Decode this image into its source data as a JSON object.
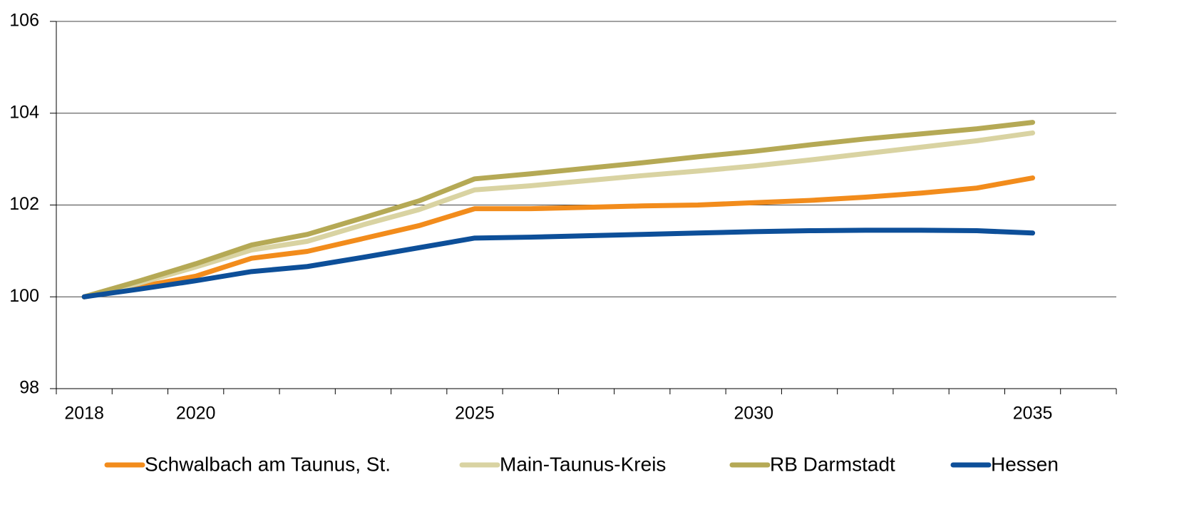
{
  "chart_data": {
    "type": "line",
    "categories": [
      "2018",
      null,
      "2020",
      null,
      null,
      null,
      null,
      "2025",
      null,
      null,
      null,
      null,
      "2030",
      null,
      null,
      null,
      null,
      "2035",
      null
    ],
    "series": [
      {
        "name": "Schwalbach am Taunus, St.",
        "color": "#f28c1c",
        "values": [
          100,
          100.22,
          100.45,
          100.84,
          100.99,
          101.27,
          101.55,
          101.92,
          101.92,
          101.95,
          101.98,
          102.0,
          102.05,
          102.1,
          102.17,
          102.26,
          102.37,
          102.59,
          null
        ]
      },
      {
        "name": "Main-Taunus-Kreis",
        "color": "#d9d3a2",
        "values": [
          100,
          100.3,
          100.65,
          101.02,
          101.21,
          101.57,
          101.9,
          102.33,
          102.42,
          102.53,
          102.64,
          102.74,
          102.85,
          102.98,
          103.12,
          103.26,
          103.4,
          103.57,
          null
        ]
      },
      {
        "name": "RB Darmstadt",
        "color": "#b5a955",
        "values": [
          100,
          100.35,
          100.72,
          101.13,
          101.36,
          101.72,
          102.09,
          102.57,
          102.68,
          102.8,
          102.92,
          103.05,
          103.17,
          103.31,
          103.44,
          103.55,
          103.66,
          103.8,
          null
        ]
      },
      {
        "name": "Hessen",
        "color": "#0d4f99",
        "values": [
          100,
          100.17,
          100.35,
          100.55,
          100.66,
          100.86,
          101.07,
          101.28,
          101.3,
          101.33,
          101.36,
          101.39,
          101.42,
          101.44,
          101.45,
          101.45,
          101.44,
          101.39,
          null
        ]
      }
    ],
    "ylim": [
      98,
      106
    ],
    "yticks": [
      98,
      100,
      102,
      104,
      106
    ],
    "grid": true
  }
}
